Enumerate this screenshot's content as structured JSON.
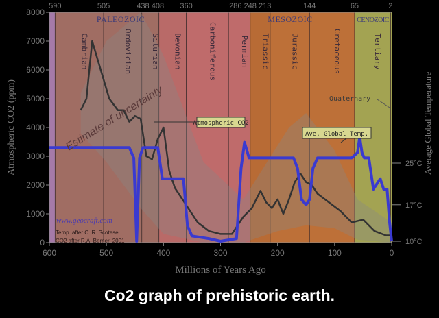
{
  "caption": "Co2 graph of prehistoric earth.",
  "chart_data": {
    "type": "line",
    "xlabel": "Millions of Years Ago",
    "ylabel": "Atmospheric CO2 (ppm)",
    "y2label": "Average Global Temperature",
    "xlim": [
      600,
      0
    ],
    "ylim": [
      0,
      8000
    ],
    "x_ticks": [
      "600",
      "500",
      "400",
      "300",
      "200",
      "100",
      "0"
    ],
    "y_ticks": [
      "0",
      "1000",
      "2000",
      "3000",
      "4000",
      "5000",
      "6000",
      "7000",
      "8000"
    ],
    "y2_ticks": [
      {
        "label": "10°C",
        "value": 10
      },
      {
        "label": "17°C",
        "value": 17
      },
      {
        "label": "25°C",
        "value": 25
      }
    ],
    "boundary_ticks": [
      "590",
      "505",
      "438 408",
      "360",
      "286 248 213",
      "144",
      "65",
      "2"
    ],
    "eras": [
      {
        "name": "PALEOZOIC"
      },
      {
        "name": "MESOZOIC"
      },
      {
        "name": "CENOZOIC"
      }
    ],
    "periods": [
      {
        "name": "",
        "start": 600,
        "end": 590,
        "color": "#a57aa8"
      },
      {
        "name": "Cambrian",
        "start": 590,
        "end": 505,
        "color": "#a06d63"
      },
      {
        "name": "Ordovician",
        "start": 505,
        "end": 438,
        "color": "#a06d63"
      },
      {
        "name": "Silurian",
        "start": 438,
        "end": 408,
        "color": "#a06d63"
      },
      {
        "name": "Devonian",
        "start": 408,
        "end": 360,
        "color": "#b96a68"
      },
      {
        "name": "Carboniferous",
        "start": 360,
        "end": 286,
        "color": "#bf6b6b"
      },
      {
        "name": "Permian",
        "start": 286,
        "end": 248,
        "color": "#bf6b6b"
      },
      {
        "name": "Triassic",
        "start": 248,
        "end": 213,
        "color": "#b86b35"
      },
      {
        "name": "Jurassic",
        "start": 213,
        "end": 144,
        "color": "#bd7038"
      },
      {
        "name": "Cretaceous",
        "start": 144,
        "end": 65,
        "color": "#bd7038"
      },
      {
        "name": "Tertiary",
        "start": 65,
        "end": 2,
        "color": "#a3a352"
      },
      {
        "name": "",
        "start": 2,
        "end": 0,
        "color": "#a3a352"
      }
    ],
    "series": [
      {
        "name": "Atmospheric CO2",
        "axis": "left",
        "color": "#333333",
        "x": [
          545,
          535,
          525,
          510,
          495,
          480,
          470,
          460,
          450,
          440,
          430,
          420,
          410,
          400,
          390,
          380,
          360,
          340,
          320,
          300,
          280,
          260,
          245,
          230,
          220,
          210,
          200,
          190,
          180,
          170,
          160,
          150,
          140,
          130,
          110,
          90,
          70,
          50,
          30,
          10,
          0
        ],
        "y": [
          4600,
          5000,
          7000,
          6000,
          5000,
          4600,
          4600,
          4200,
          4400,
          4300,
          3000,
          2900,
          3600,
          4000,
          2500,
          1900,
          1300,
          700,
          400,
          300,
          300,
          900,
          1200,
          1800,
          1400,
          1200,
          1500,
          1000,
          1500,
          2100,
          2400,
          2100,
          2000,
          1700,
          1400,
          1100,
          700,
          800,
          400,
          250,
          250
        ]
      },
      {
        "name": "Ave. Global Temp.",
        "axis": "right",
        "color": "#3a3ad0",
        "x": [
          600,
          460,
          452,
          447,
          442,
          436,
          410,
          402,
          365,
          358,
          350,
          320,
          300,
          272,
          264,
          258,
          250,
          220,
          200,
          172,
          165,
          158,
          150,
          144,
          138,
          130,
          80,
          70,
          60,
          56,
          52,
          48,
          40,
          32,
          26,
          20,
          14,
          8,
          4,
          0
        ],
        "y": [
          28,
          28,
          26,
          10,
          26,
          28,
          28,
          22,
          22,
          13,
          11,
          10.5,
          10,
          10.5,
          24,
          29,
          26,
          26,
          26,
          26,
          24,
          18,
          17,
          18,
          24,
          26,
          26,
          26,
          27,
          30,
          27,
          26,
          26,
          20,
          21,
          22,
          20,
          20,
          14,
          10
        ]
      }
    ],
    "annotations": [
      "Estimate of uncertainty",
      "Atmospheric CO2",
      "Ave. Global Temp.",
      "Quaternary",
      "www.geocraft.com",
      "Temp. after C. R. Scotese",
      "CO2 after R.A. Berner, 2001"
    ],
    "grid": false
  }
}
